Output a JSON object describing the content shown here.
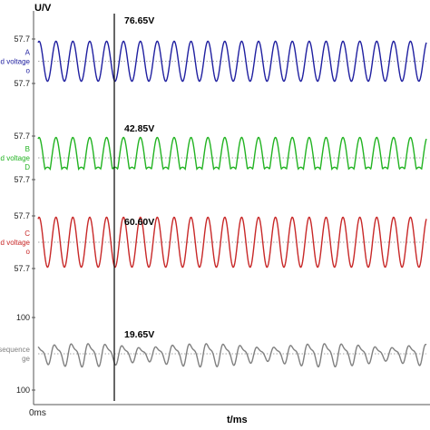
{
  "chart_data": {
    "type": "line",
    "y_axis_label": "U/V",
    "x_axis_label": "t/ms",
    "x_start_label": "0ms",
    "cursor_line": true,
    "grid": false,
    "panels": [
      {
        "top_tick": "57.7",
        "bottom_tick": "57.7",
        "side_labels": [
          "A",
          "und voltage",
          "o"
        ],
        "color": "#1f1fa0",
        "cursor_value": "76.65V",
        "cycles": 23,
        "amplitude": 0.9,
        "waveform": "sine"
      },
      {
        "top_tick": "57.7",
        "bottom_tick": "57.7",
        "side_labels": [
          "B",
          "und voltage",
          "D"
        ],
        "color": "#22b322",
        "cursor_value": "42.85V",
        "cycles": 23,
        "amplitude": 0.75,
        "waveform": "sine-flat-bottom"
      },
      {
        "top_tick": "57.7",
        "bottom_tick": "57.7",
        "side_labels": [
          "C",
          "und voltage",
          "o"
        ],
        "color": "#c82828",
        "cursor_value": "60.60V",
        "cycles": 23,
        "amplitude": 0.95,
        "waveform": "sine"
      },
      {
        "top_tick": "100",
        "bottom_tick": "100",
        "side_labels": [
          "sequence",
          "ge"
        ],
        "color": "#808080",
        "cursor_value": "19.65V",
        "cycles": 23,
        "amplitude": 0.28,
        "waveform": "sine-distorted"
      }
    ]
  }
}
